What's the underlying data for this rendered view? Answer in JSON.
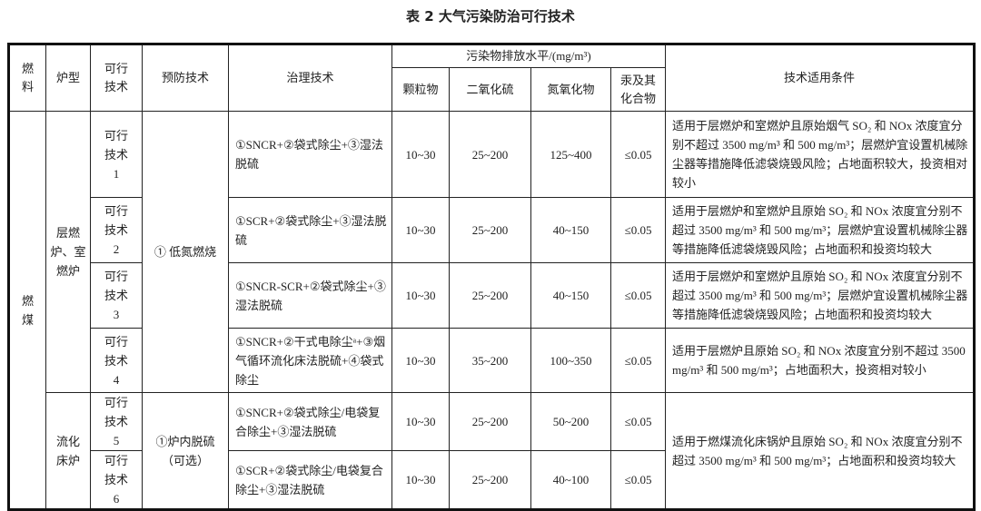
{
  "title": "表 2  大气污染防治可行技术",
  "header": {
    "fuel": "燃料",
    "furnace": "炉型",
    "feasible": "可行技术",
    "prevention": "预防技术",
    "treatment": "治理技术",
    "emission_group": "污染物排放水平/(mg/m³)",
    "particulate": "颗粒物",
    "so2": "二氧化硫",
    "nox": "氮氧化物",
    "mercury": "汞及其化合物",
    "conditions": "技术适用条件"
  },
  "fuel": "燃煤",
  "furnace_groups": [
    "层燃炉、室燃炉",
    "流化床炉"
  ],
  "prevention_groups": [
    "①  低氮燃烧",
    "①炉内脱硫（可选）"
  ],
  "rows": [
    {
      "tech": "可行技术 1",
      "treatment": "①SNCR+②袋式除尘+③湿法脱硫",
      "pm": "10~30",
      "so2": "25~200",
      "nox": "125~400",
      "hg": "≤0.05",
      "cond": "适用于层燃炉和室燃炉且原始烟气 SO₂ 和 NOx 浓度宜分别不超过 3500 mg/m³ 和 500 mg/m³；层燃炉宜设置机械除尘器等措施降低滤袋烧毁风险；占地面积较大，投资相对较小"
    },
    {
      "tech": "可行技术 2",
      "treatment": "①SCR+②袋式除尘+③湿法脱硫",
      "pm": "10~30",
      "so2": "25~200",
      "nox": "40~150",
      "hg": "≤0.05",
      "cond": "适用于层燃炉和室燃炉且原始 SO₂ 和 NOx 浓度宜分别不超过 3500 mg/m³ 和 500 mg/m³；层燃炉宜设置机械除尘器等措施降低滤袋烧毁风险；占地面积和投资均较大"
    },
    {
      "tech": "可行技术 3",
      "treatment": "①SNCR-SCR+②袋式除尘+③湿法脱硫",
      "pm": "10~30",
      "so2": "25~200",
      "nox": "40~150",
      "hg": "≤0.05",
      "cond": "适用于层燃炉和室燃炉且原始 SO₂ 和 NOx 浓度宜分别不超过 3500 mg/m³ 和 500 mg/m³；层燃炉宜设置机械除尘器等措施降低滤袋烧毁风险；占地面积和投资均较大"
    },
    {
      "tech": "可行技术 4",
      "treatment": "①SNCR+②干式电除尘ᵃ+③烟气循环流化床法脱硫+④袋式除尘",
      "pm": "10~30",
      "so2": "35~200",
      "nox": "100~350",
      "hg": "≤0.05",
      "cond": "适用于层燃炉且原始 SO₂ 和 NOx 浓度宜分别不超过 3500 mg/m³ 和 500 mg/m³；占地面积大，投资相对较小"
    },
    {
      "tech": "可行技术 5",
      "treatment": "①SNCR+②袋式除尘/电袋复合除尘+③湿法脱硫",
      "pm": "10~30",
      "so2": "25~200",
      "nox": "50~200",
      "hg": "≤0.05",
      "cond": "适用于燃煤流化床锅炉且原始 SO₂ 和 NOx 浓度宜分别不超过 3500 mg/m³ 和 500 mg/m³；占地面积和投资均较大"
    },
    {
      "tech": "可行技术 6",
      "treatment": "①SCR+②袋式除尘/电袋复合除尘+③湿法脱硫",
      "pm": "10~30",
      "so2": "25~200",
      "nox": "40~100",
      "hg": "≤0.05"
    }
  ]
}
